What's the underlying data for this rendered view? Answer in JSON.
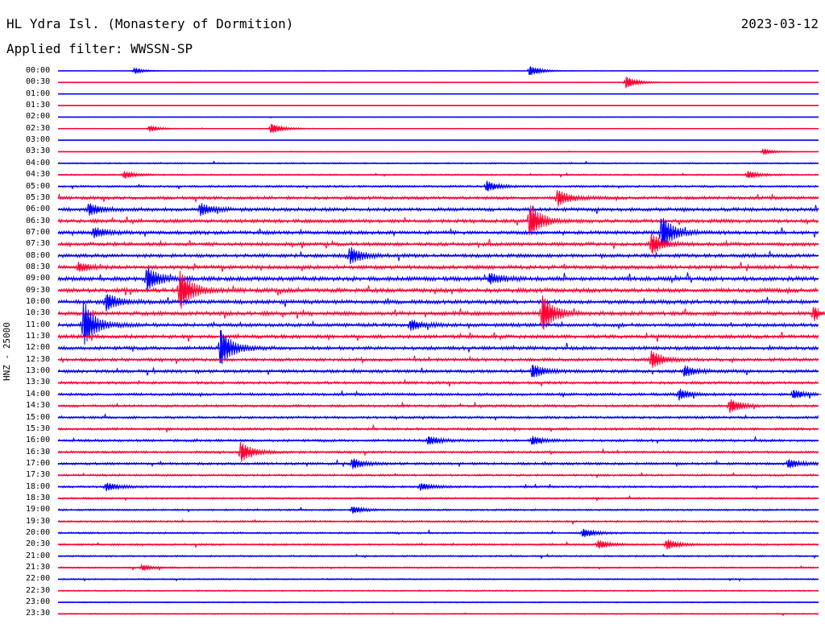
{
  "header": {
    "title": "HL Ydra Isl. (Monastery of Dormition)",
    "date": "2023-03-12",
    "filter": "Applied filter: WWSSN-SP",
    "side_label": "HNZ - 25000"
  },
  "colors": {
    "odd_trace": "#0000ff",
    "even_trace": "#ff0033",
    "text": "#000000",
    "background": "#ffffff"
  },
  "chart_data": {
    "type": "line",
    "title": "HL Ydra Isl. (Monastery of Dormition)",
    "subtitle": "Applied filter: WWSSN-SP",
    "ylabel": "HNZ - 25000",
    "x_range_minutes": [
      0,
      30
    ],
    "row_labels": [
      "00:00",
      "00:30",
      "01:00",
      "01:30",
      "02:00",
      "02:30",
      "03:00",
      "03:30",
      "04:00",
      "04:30",
      "05:00",
      "05:30",
      "06:00",
      "06:30",
      "07:00",
      "07:30",
      "08:00",
      "08:30",
      "09:00",
      "09:30",
      "10:00",
      "10:30",
      "11:00",
      "11:30",
      "12:00",
      "12:30",
      "13:00",
      "13:30",
      "14:00",
      "14:30",
      "15:00",
      "15:30",
      "16:00",
      "16:30",
      "17:00",
      "17:30",
      "18:00",
      "18:30",
      "19:00",
      "19:30",
      "20:00",
      "20:30",
      "21:00",
      "21:30",
      "22:00",
      "22:30",
      "23:00",
      "23:30"
    ],
    "noise_level": [
      0.2,
      0.2,
      0.1,
      0.1,
      0.3,
      0.3,
      0.2,
      0.3,
      0.6,
      0.7,
      0.9,
      1.4,
      1.6,
      1.6,
      1.6,
      1.6,
      1.6,
      1.7,
      1.9,
      1.9,
      1.8,
      1.8,
      1.6,
      1.6,
      1.6,
      1.4,
      1.4,
      1.2,
      1.2,
      1.1,
      1.1,
      1.1,
      1.1,
      1.0,
      1.1,
      0.9,
      0.9,
      0.8,
      0.8,
      0.8,
      0.8,
      0.8,
      0.7,
      0.7,
      0.6,
      0.6,
      0.5,
      0.5
    ],
    "events": [
      {
        "row": 0,
        "minute": 18.6,
        "amplitude": 6
      },
      {
        "row": 0,
        "minute": 3.0,
        "amplitude": 3
      },
      {
        "row": 1,
        "minute": 22.4,
        "amplitude": 7
      },
      {
        "row": 5,
        "minute": 8.4,
        "amplitude": 6
      },
      {
        "row": 5,
        "minute": 3.6,
        "amplitude": 3
      },
      {
        "row": 7,
        "minute": 27.8,
        "amplitude": 3
      },
      {
        "row": 9,
        "minute": 2.6,
        "amplitude": 4
      },
      {
        "row": 9,
        "minute": 27.2,
        "amplitude": 4
      },
      {
        "row": 10,
        "minute": 16.9,
        "amplitude": 6
      },
      {
        "row": 11,
        "minute": 19.7,
        "amplitude": 10
      },
      {
        "row": 12,
        "minute": 1.2,
        "amplitude": 7
      },
      {
        "row": 12,
        "minute": 5.6,
        "amplitude": 7
      },
      {
        "row": 13,
        "minute": 18.6,
        "amplitude": 20
      },
      {
        "row": 14,
        "minute": 23.8,
        "amplitude": 20
      },
      {
        "row": 14,
        "minute": 1.4,
        "amplitude": 6
      },
      {
        "row": 15,
        "minute": 23.4,
        "amplitude": 12
      },
      {
        "row": 16,
        "minute": 11.5,
        "amplitude": 10
      },
      {
        "row": 17,
        "minute": 0.8,
        "amplitude": 5
      },
      {
        "row": 18,
        "minute": 3.5,
        "amplitude": 14
      },
      {
        "row": 18,
        "minute": 17.0,
        "amplitude": 6
      },
      {
        "row": 19,
        "minute": 4.8,
        "amplitude": 24
      },
      {
        "row": 20,
        "minute": 1.9,
        "amplitude": 10
      },
      {
        "row": 21,
        "minute": 19.1,
        "amplitude": 22
      },
      {
        "row": 21,
        "minute": 29.8,
        "amplitude": 8
      },
      {
        "row": 22,
        "minute": 1.0,
        "amplitude": 26
      },
      {
        "row": 22,
        "minute": 13.9,
        "amplitude": 6
      },
      {
        "row": 24,
        "minute": 6.4,
        "amplitude": 22
      },
      {
        "row": 25,
        "minute": 23.4,
        "amplitude": 10
      },
      {
        "row": 26,
        "minute": 24.7,
        "amplitude": 6
      },
      {
        "row": 26,
        "minute": 18.7,
        "amplitude": 8
      },
      {
        "row": 28,
        "minute": 24.5,
        "amplitude": 6
      },
      {
        "row": 28,
        "minute": 29.0,
        "amplitude": 5
      },
      {
        "row": 29,
        "minute": 26.5,
        "amplitude": 8
      },
      {
        "row": 32,
        "minute": 14.6,
        "amplitude": 5
      },
      {
        "row": 32,
        "minute": 18.7,
        "amplitude": 5
      },
      {
        "row": 33,
        "minute": 7.2,
        "amplitude": 12
      },
      {
        "row": 34,
        "minute": 11.6,
        "amplitude": 6
      },
      {
        "row": 34,
        "minute": 28.8,
        "amplitude": 5
      },
      {
        "row": 36,
        "minute": 1.9,
        "amplitude": 5
      },
      {
        "row": 36,
        "minute": 14.3,
        "amplitude": 4
      },
      {
        "row": 38,
        "minute": 11.6,
        "amplitude": 4
      },
      {
        "row": 40,
        "minute": 20.7,
        "amplitude": 5
      },
      {
        "row": 41,
        "minute": 21.3,
        "amplitude": 5
      },
      {
        "row": 41,
        "minute": 24.0,
        "amplitude": 6
      },
      {
        "row": 43,
        "minute": 3.3,
        "amplitude": 3
      }
    ]
  }
}
